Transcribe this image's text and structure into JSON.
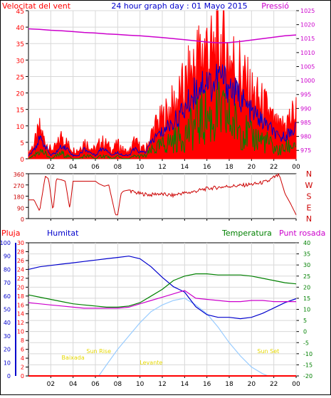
{
  "header": {
    "title": "24 hour graph day : 01 Mayo 2015",
    "left_label": "Velocitat del vent",
    "right_label": "Pressió"
  },
  "labels": {
    "pluja": "Pluja",
    "humitat": "Humitat",
    "temperatura": "Temperatura",
    "punt_rosada": "Punt rosada"
  },
  "colors": {
    "wind": "#ff0000",
    "wind_avg": "#0000cc",
    "gust_base": "#008000",
    "pressure": "#cc00cc",
    "direction": "#cc0000",
    "humidity": "#0000cc",
    "temperature": "#008000",
    "dewpoint": "#cc00cc",
    "solar": "#99ccff",
    "annotation": "#e6d800",
    "frame": "#000000",
    "grid": "#d8d8d8"
  },
  "chart_data": [
    {
      "type": "line",
      "title": "24 hour graph day : 01 Mayo 2015",
      "xticks": [
        "02",
        "04",
        "06",
        "08",
        "10",
        "12",
        "14",
        "16",
        "18",
        "20",
        "22",
        "00"
      ],
      "x_range_hours": [
        0,
        24
      ],
      "ylabel_left": "Velocitat del vent",
      "ylabel_right": "Pressió",
      "yticks_left": [
        0,
        5,
        10,
        15,
        20,
        25,
        30,
        35,
        40,
        45
      ],
      "ylim_left": [
        0,
        45
      ],
      "yticks_right": [
        975,
        980,
        985,
        990,
        995,
        1000,
        1005,
        1010,
        1015,
        1020,
        1025
      ],
      "ylim_right": [
        972,
        1025
      ],
      "series": [
        {
          "name": "Velocitat del vent",
          "axis": "left",
          "style": "gust",
          "x": [
            0,
            0.5,
            1,
            1.5,
            2,
            2.5,
            3,
            3.5,
            4,
            4.5,
            5,
            5.5,
            6,
            6.5,
            7,
            7.5,
            8,
            8.5,
            9,
            9.5,
            10,
            10.5,
            11,
            11.5,
            12,
            12.5,
            13,
            13.5,
            14,
            14.5,
            15,
            15.5,
            16,
            16.5,
            17,
            17.5,
            18,
            18.5,
            19,
            19.5,
            20,
            20.5,
            21,
            21.5,
            22,
            22.5,
            23,
            23.5,
            24
          ],
          "values": [
            2,
            5,
            10,
            6,
            3,
            4,
            8,
            5,
            3,
            3,
            6,
            4,
            3,
            6,
            5,
            3,
            5,
            3,
            2,
            6,
            4,
            3,
            8,
            12,
            13,
            16,
            18,
            21,
            24,
            28,
            33,
            36,
            38,
            34,
            40,
            38,
            35,
            32,
            30,
            25,
            22,
            20,
            18,
            16,
            12,
            10,
            12,
            14,
            16
          ]
        },
        {
          "name": "Mitjana",
          "axis": "left",
          "style": "avg",
          "x": [
            0,
            0.5,
            1,
            1.5,
            2,
            2.5,
            3,
            3.5,
            4,
            4.5,
            5,
            5.5,
            6,
            6.5,
            7,
            7.5,
            8,
            8.5,
            9,
            9.5,
            10,
            10.5,
            11,
            11.5,
            12,
            12.5,
            13,
            13.5,
            14,
            14.5,
            15,
            15.5,
            16,
            16.5,
            17,
            17.5,
            18,
            18.5,
            19,
            19.5,
            20,
            20.5,
            21,
            21.5,
            22,
            22.5,
            23,
            23.5,
            24
          ],
          "values": [
            1,
            3,
            6,
            4,
            1,
            2,
            4,
            3,
            1,
            1,
            3,
            2,
            1,
            3,
            3,
            1,
            2,
            1,
            1,
            3,
            2,
            2,
            5,
            7,
            8,
            10,
            11,
            13,
            15,
            18,
            21,
            23,
            24,
            22,
            25,
            24,
            22,
            20,
            19,
            16,
            14,
            13,
            11,
            10,
            8,
            6,
            7,
            8,
            10
          ]
        },
        {
          "name": "Base",
          "axis": "left",
          "style": "base",
          "x": [
            0,
            0.5,
            1,
            1.5,
            2,
            2.5,
            3,
            3.5,
            4,
            4.5,
            5,
            5.5,
            6,
            6.5,
            7,
            7.5,
            8,
            8.5,
            9,
            9.5,
            10,
            10.5,
            11,
            11.5,
            12,
            12.5,
            13,
            13.5,
            14,
            14.5,
            15,
            15.5,
            16,
            16.5,
            17,
            17.5,
            18,
            18.5,
            19,
            19.5,
            20,
            20.5,
            21,
            21.5,
            22,
            22.5,
            23,
            23.5,
            24
          ],
          "values": [
            0,
            1,
            3,
            2,
            0,
            1,
            2,
            1,
            0,
            0,
            1,
            1,
            0,
            1,
            1,
            0,
            1,
            0,
            0,
            1,
            1,
            1,
            3,
            4,
            5,
            6,
            7,
            8,
            9,
            11,
            13,
            15,
            16,
            14,
            17,
            16,
            14,
            13,
            12,
            10,
            8,
            8,
            7,
            6,
            4,
            3,
            4,
            5,
            6
          ]
        },
        {
          "name": "Pressió",
          "axis": "right",
          "style": "pressure",
          "x": [
            0,
            1,
            2,
            3,
            4,
            5,
            6,
            7,
            8,
            9,
            10,
            11,
            12,
            13,
            14,
            15,
            16,
            17,
            18,
            19,
            20,
            21,
            22,
            23,
            24
          ],
          "values": [
            1018.5,
            1018.3,
            1018,
            1017.8,
            1017.5,
            1017.2,
            1017,
            1016.7,
            1016.5,
            1016.2,
            1016,
            1015.7,
            1015.4,
            1015,
            1014.6,
            1014.2,
            1013.8,
            1013.5,
            1013.6,
            1014,
            1014.5,
            1015,
            1015.5,
            1016,
            1016.3
          ]
        }
      ]
    },
    {
      "type": "line",
      "title": "",
      "xlabel": "",
      "ylim": [
        0,
        360
      ],
      "yticks_left": [
        0,
        90,
        180,
        270,
        360
      ],
      "yticks_right": [
        "N",
        "W",
        "S",
        "E",
        "N"
      ],
      "series": [
        {
          "name": "Direcció",
          "style": "direction",
          "x": [
            0,
            0.5,
            1,
            1.5,
            1.8,
            2.2,
            2.5,
            3,
            3.3,
            3.7,
            4,
            4.5,
            5,
            5.5,
            6,
            6.3,
            6.8,
            7.2,
            7.8,
            8,
            8.3,
            8.5,
            9,
            9.5,
            10,
            10.5,
            11,
            11.5,
            12,
            12.5,
            13,
            13.5,
            14,
            14.5,
            15,
            15.5,
            16,
            16.5,
            17,
            17.5,
            18,
            18.5,
            19,
            19.5,
            20,
            20.5,
            21,
            21.5,
            22,
            22.5,
            23,
            23.5,
            24
          ],
          "values": [
            150,
            150,
            60,
            340,
            320,
            60,
            320,
            310,
            300,
            80,
            300,
            300,
            300,
            300,
            300,
            280,
            260,
            270,
            30,
            30,
            200,
            220,
            230,
            210,
            200,
            195,
            190,
            200,
            195,
            190,
            185,
            200,
            205,
            210,
            220,
            230,
            240,
            245,
            250,
            255,
            260,
            262,
            265,
            270,
            275,
            280,
            290,
            300,
            330,
            350,
            200,
            120,
            30
          ]
        }
      ]
    },
    {
      "type": "line",
      "title": "",
      "xticks": [
        "02",
        "04",
        "06",
        "08",
        "10",
        "12",
        "14",
        "16",
        "18",
        "20",
        "22",
        "00"
      ],
      "ylabel_left": "Pluja",
      "ylabel_left2": "Humitat",
      "ylabel_right": "Temperatura",
      "ylabel_right2": "Punt rosada",
      "yticks_pluja": [
        0,
        2,
        4,
        6,
        8,
        10,
        12,
        14,
        16,
        18,
        20,
        22,
        24,
        26,
        28,
        30
      ],
      "yticks_humitat": [
        0,
        10,
        20,
        30,
        40,
        50,
        60,
        70,
        80,
        90,
        100
      ],
      "yticks_temp": [
        -20,
        -15,
        -10,
        -5,
        0,
        5,
        10,
        15,
        20,
        25,
        30,
        35,
        40
      ],
      "ylim_temp": [
        -20,
        40
      ],
      "series": [
        {
          "name": "Humitat",
          "axis": "humitat",
          "x": [
            0,
            1,
            2,
            3,
            4,
            5,
            6,
            7,
            8,
            9,
            10,
            11,
            12,
            13,
            14,
            15,
            16,
            17,
            18,
            19,
            20,
            21,
            22,
            23,
            24
          ],
          "values": [
            80,
            82,
            83,
            84,
            85,
            86,
            87,
            88,
            89,
            90,
            88,
            82,
            74,
            67,
            63,
            52,
            46,
            44,
            44,
            43,
            44,
            47,
            51,
            55,
            58
          ]
        },
        {
          "name": "Temperatura",
          "axis": "temp",
          "x": [
            0,
            1,
            2,
            3,
            4,
            5,
            6,
            7,
            8,
            9,
            10,
            11,
            12,
            13,
            14,
            15,
            16,
            17,
            18,
            19,
            20,
            21,
            22,
            23,
            24
          ],
          "values": [
            16.5,
            15.5,
            14.5,
            13.5,
            12.5,
            12,
            11.5,
            11,
            11,
            11.5,
            13,
            16,
            19,
            23,
            25,
            26,
            26,
            25.5,
            25.5,
            25.5,
            25,
            24,
            23,
            22,
            21.5
          ]
        },
        {
          "name": "Punt rosada",
          "axis": "temp",
          "x": [
            0,
            1,
            2,
            3,
            4,
            5,
            6,
            7,
            8,
            9,
            10,
            11,
            12,
            13,
            14,
            15,
            16,
            17,
            18,
            19,
            20,
            21,
            22,
            23,
            24
          ],
          "values": [
            13,
            12.5,
            12,
            11.5,
            11,
            10.5,
            10.5,
            10.5,
            10.5,
            11,
            12.5,
            14,
            15.5,
            17,
            18.5,
            15,
            14.5,
            14,
            13.5,
            13.5,
            14,
            14,
            13.5,
            13.5,
            13.5
          ]
        },
        {
          "name": "Solar",
          "axis": "temp",
          "x": [
            6.3,
            7,
            8,
            9,
            10,
            11,
            12,
            13,
            14,
            15,
            16,
            17,
            18,
            19,
            20,
            21,
            21.5
          ],
          "values": [
            -20,
            -15,
            -8,
            -2,
            4,
            9,
            12,
            14,
            15,
            12,
            8,
            2,
            -5,
            -11,
            -16,
            -19,
            -20
          ]
        },
        {
          "name": "Pluja",
          "axis": "pluja",
          "x": [
            0,
            24
          ],
          "values": [
            0,
            0
          ]
        }
      ],
      "annotations": [
        {
          "text": "Baixada",
          "x_hour": 4
        },
        {
          "text": "Sun Rise",
          "x_hour": 6.3
        },
        {
          "text": "Levante",
          "x_hour": 11
        },
        {
          "text": "Sun Set",
          "x_hour": 21.5
        }
      ]
    }
  ]
}
